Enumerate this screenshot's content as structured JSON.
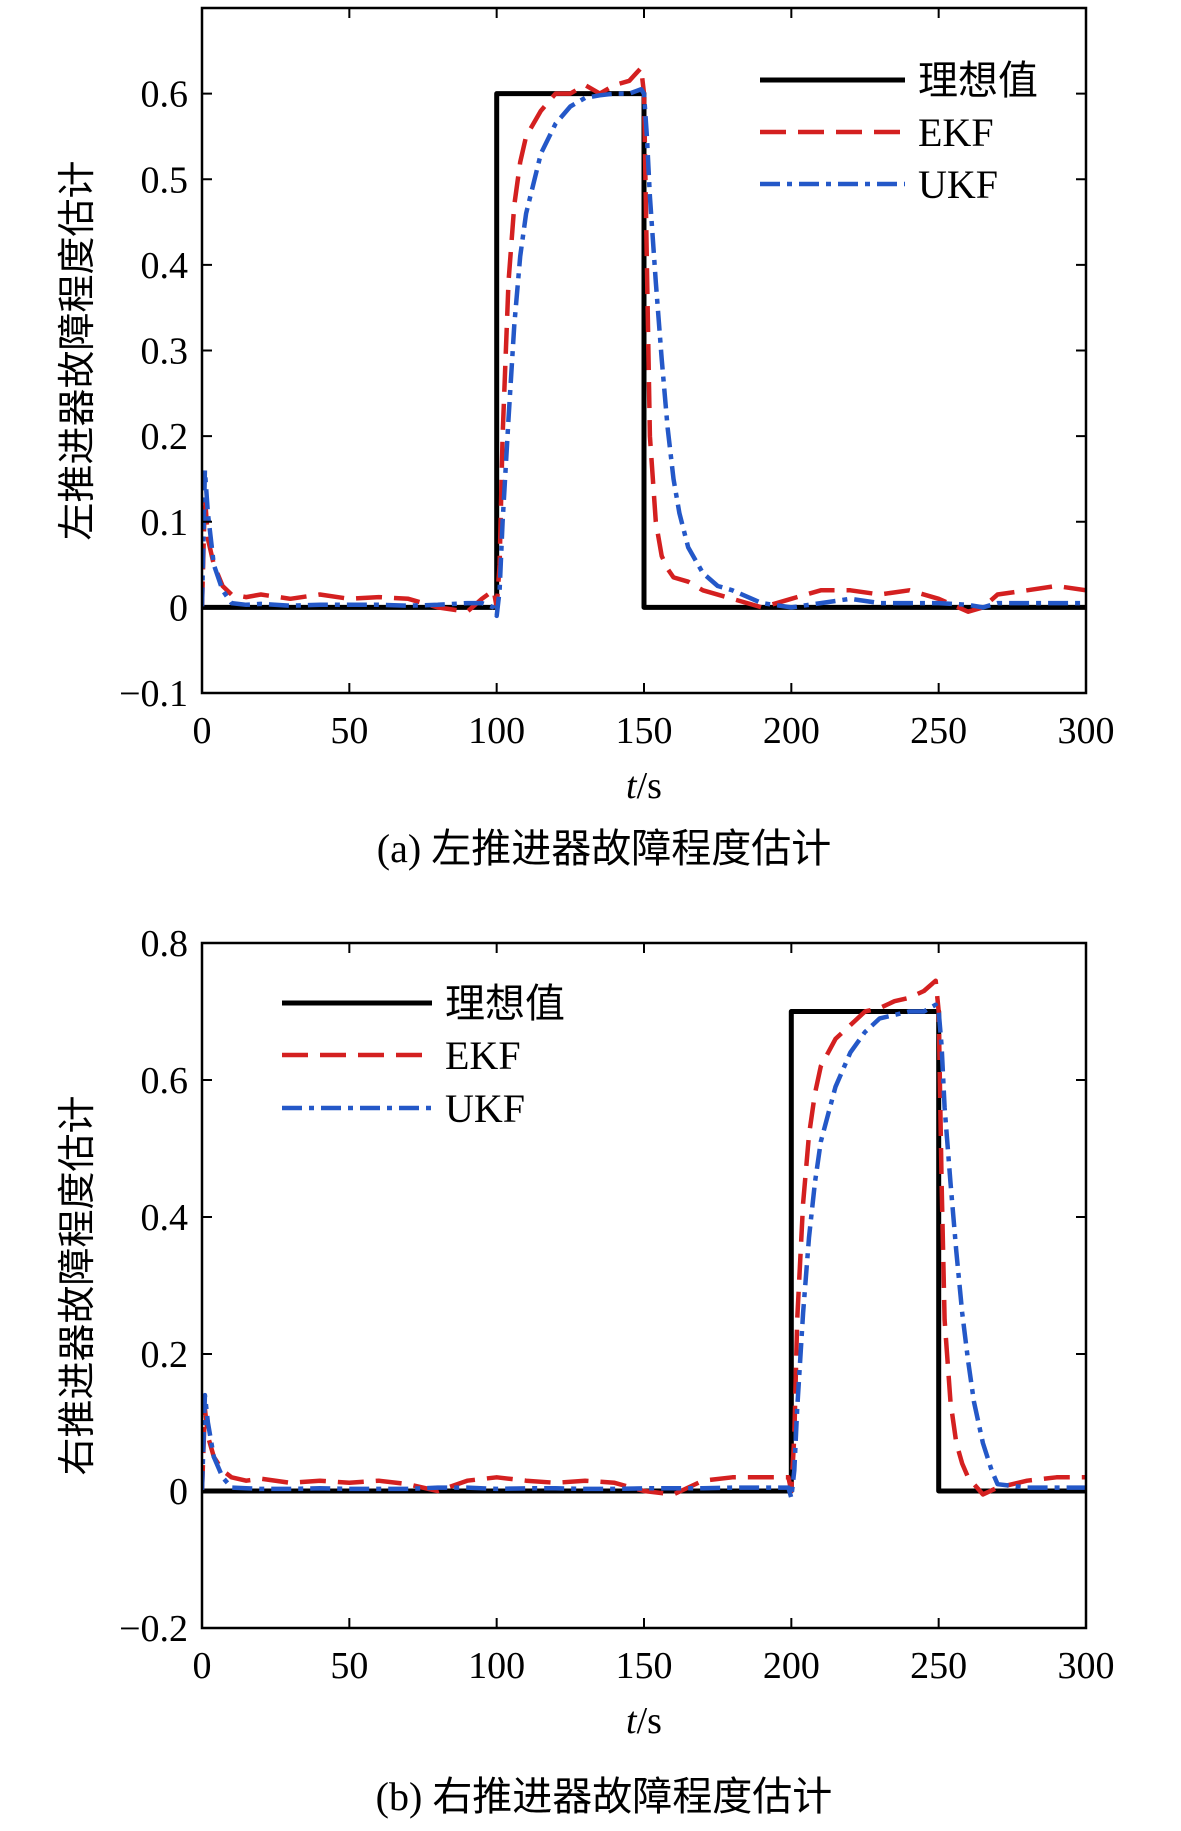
{
  "chart_data": [
    {
      "type": "line",
      "caption": "(a) 左推进器故障程度估计",
      "xlabel_var": "t",
      "xlabel_unit": "/s",
      "ylabel": "左推进器故障程度估计",
      "xlim": [
        0,
        300
      ],
      "ylim": [
        -0.1,
        0.7
      ],
      "xticks": [
        0,
        50,
        100,
        150,
        200,
        250,
        300
      ],
      "xtick_labels": [
        "0",
        "50",
        "100",
        "150",
        "200",
        "250",
        "300"
      ],
      "yticks": [
        -0.1,
        0,
        0.1,
        0.2,
        0.3,
        0.4,
        0.5,
        0.6
      ],
      "ytick_labels": [
        "−0.1",
        "0",
        "0.1",
        "0.2",
        "0.3",
        "0.4",
        "0.5",
        "0.6"
      ],
      "legend_position": "top-right",
      "series": [
        {
          "name": "理想值",
          "color": "#000000",
          "dash": "solid",
          "x": [
            0,
            100,
            100,
            150,
            150,
            300
          ],
          "y": [
            0,
            0,
            0.6,
            0.6,
            0,
            0
          ]
        },
        {
          "name": "EKF",
          "color": "#d42020",
          "dash": "dashed",
          "x": [
            0,
            1,
            2,
            4,
            7,
            10,
            15,
            20,
            30,
            40,
            50,
            60,
            70,
            80,
            90,
            95,
            99,
            100,
            101,
            102,
            104,
            106,
            108,
            110,
            115,
            120,
            125,
            130,
            135,
            140,
            145,
            149,
            150,
            151,
            152,
            154,
            156,
            158,
            160,
            165,
            170,
            180,
            190,
            200,
            210,
            220,
            230,
            240,
            250,
            260,
            265,
            270,
            280,
            290,
            300
          ],
          "y": [
            0,
            0.13,
            0.08,
            0.05,
            0.025,
            0.015,
            0.012,
            0.015,
            0.01,
            0.015,
            0.01,
            0.012,
            0.01,
            0.0,
            -0.005,
            0.01,
            0.02,
            0.0,
            0.05,
            0.2,
            0.38,
            0.47,
            0.52,
            0.55,
            0.58,
            0.6,
            0.6,
            0.61,
            0.6,
            0.61,
            0.615,
            0.63,
            0.6,
            0.4,
            0.2,
            0.1,
            0.06,
            0.045,
            0.035,
            0.03,
            0.02,
            0.01,
            0.0,
            0.01,
            0.02,
            0.02,
            0.015,
            0.02,
            0.01,
            -0.005,
            0.0,
            0.015,
            0.02,
            0.025,
            0.02
          ]
        },
        {
          "name": "UKF",
          "color": "#2458c8",
          "dash": "dashdot",
          "x": [
            0,
            1,
            2,
            4,
            7,
            10,
            15,
            20,
            30,
            40,
            50,
            60,
            70,
            80,
            90,
            95,
            99,
            100,
            101,
            102,
            104,
            106,
            108,
            110,
            115,
            120,
            125,
            130,
            135,
            140,
            145,
            149,
            150,
            151,
            152,
            154,
            156,
            158,
            160,
            162,
            165,
            170,
            175,
            180,
            190,
            200,
            210,
            220,
            230,
            240,
            250,
            260,
            265,
            270,
            280,
            290,
            300
          ],
          "y": [
            0,
            0.16,
            0.11,
            0.05,
            0.02,
            0.005,
            0.003,
            0.004,
            0.002,
            0.003,
            0.003,
            0.003,
            0.002,
            0.003,
            0.005,
            0.005,
            0.0,
            -0.01,
            0.02,
            0.1,
            0.22,
            0.33,
            0.41,
            0.46,
            0.53,
            0.565,
            0.585,
            0.595,
            0.598,
            0.6,
            0.6,
            0.605,
            0.6,
            0.55,
            0.48,
            0.38,
            0.29,
            0.21,
            0.15,
            0.11,
            0.07,
            0.04,
            0.025,
            0.02,
            0.005,
            0.0,
            0.005,
            0.01,
            0.005,
            0.005,
            0.005,
            0.003,
            0.0,
            0.005,
            0.005,
            0.005,
            0.005
          ]
        }
      ]
    },
    {
      "type": "line",
      "caption": "(b) 右推进器故障程度估计",
      "xlabel_var": "t",
      "xlabel_unit": "/s",
      "ylabel": "右推进器故障程度估计",
      "xlim": [
        0,
        300
      ],
      "ylim": [
        -0.2,
        0.8
      ],
      "xticks": [
        0,
        50,
        100,
        150,
        200,
        250,
        300
      ],
      "xtick_labels": [
        "0",
        "50",
        "100",
        "150",
        "200",
        "250",
        "300"
      ],
      "yticks": [
        -0.2,
        0,
        0.2,
        0.4,
        0.6,
        0.8
      ],
      "ytick_labels": [
        "−0.2",
        "0",
        "0.2",
        "0.4",
        "0.6",
        "0.8"
      ],
      "legend_position": "top-left",
      "series": [
        {
          "name": "理想值",
          "color": "#000000",
          "dash": "solid",
          "x": [
            0,
            200,
            200,
            250,
            250,
            300
          ],
          "y": [
            0,
            0,
            0.7,
            0.7,
            0,
            0
          ]
        },
        {
          "name": "EKF",
          "color": "#d42020",
          "dash": "dashed",
          "x": [
            0,
            1,
            2,
            4,
            7,
            10,
            15,
            20,
            30,
            40,
            50,
            60,
            70,
            80,
            90,
            100,
            110,
            120,
            130,
            140,
            150,
            160,
            170,
            180,
            190,
            199,
            200,
            201,
            202,
            204,
            206,
            208,
            210,
            215,
            220,
            225,
            230,
            235,
            240,
            245,
            249,
            250,
            251,
            252,
            254,
            256,
            258,
            260,
            262,
            265,
            270,
            280,
            290,
            300
          ],
          "y": [
            0,
            0.12,
            0.08,
            0.05,
            0.03,
            0.02,
            0.015,
            0.018,
            0.012,
            0.015,
            0.012,
            0.015,
            0.01,
            0.0,
            0.015,
            0.02,
            0.015,
            0.012,
            0.015,
            0.012,
            0.0,
            -0.005,
            0.015,
            0.02,
            0.02,
            0.02,
            0.0,
            0.08,
            0.25,
            0.42,
            0.52,
            0.58,
            0.62,
            0.66,
            0.68,
            0.7,
            0.705,
            0.715,
            0.72,
            0.73,
            0.745,
            0.7,
            0.45,
            0.25,
            0.13,
            0.07,
            0.04,
            0.02,
            0.01,
            -0.005,
            0.005,
            0.015,
            0.02,
            0.02
          ]
        },
        {
          "name": "UKF",
          "color": "#2458c8",
          "dash": "dashdot",
          "x": [
            0,
            1,
            2,
            4,
            7,
            10,
            15,
            20,
            30,
            40,
            50,
            60,
            70,
            80,
            90,
            100,
            110,
            120,
            130,
            140,
            150,
            160,
            170,
            180,
            190,
            199,
            200,
            201,
            202,
            204,
            206,
            208,
            210,
            215,
            220,
            225,
            230,
            235,
            240,
            245,
            249,
            250,
            251,
            252,
            254,
            256,
            258,
            260,
            262,
            265,
            268,
            270,
            280,
            290,
            300
          ],
          "y": [
            0,
            0.14,
            0.1,
            0.05,
            0.02,
            0.005,
            0.004,
            0.003,
            0.003,
            0.004,
            0.003,
            0.003,
            0.003,
            0.005,
            0.005,
            0.003,
            0.004,
            0.004,
            0.003,
            0.003,
            0.004,
            0.004,
            0.004,
            0.005,
            0.005,
            0.005,
            -0.01,
            0.03,
            0.12,
            0.26,
            0.37,
            0.45,
            0.51,
            0.59,
            0.64,
            0.67,
            0.69,
            0.695,
            0.7,
            0.7,
            0.71,
            0.7,
            0.65,
            0.56,
            0.45,
            0.35,
            0.26,
            0.19,
            0.13,
            0.07,
            0.03,
            0.01,
            0.005,
            0.005,
            0.005
          ]
        }
      ]
    }
  ]
}
